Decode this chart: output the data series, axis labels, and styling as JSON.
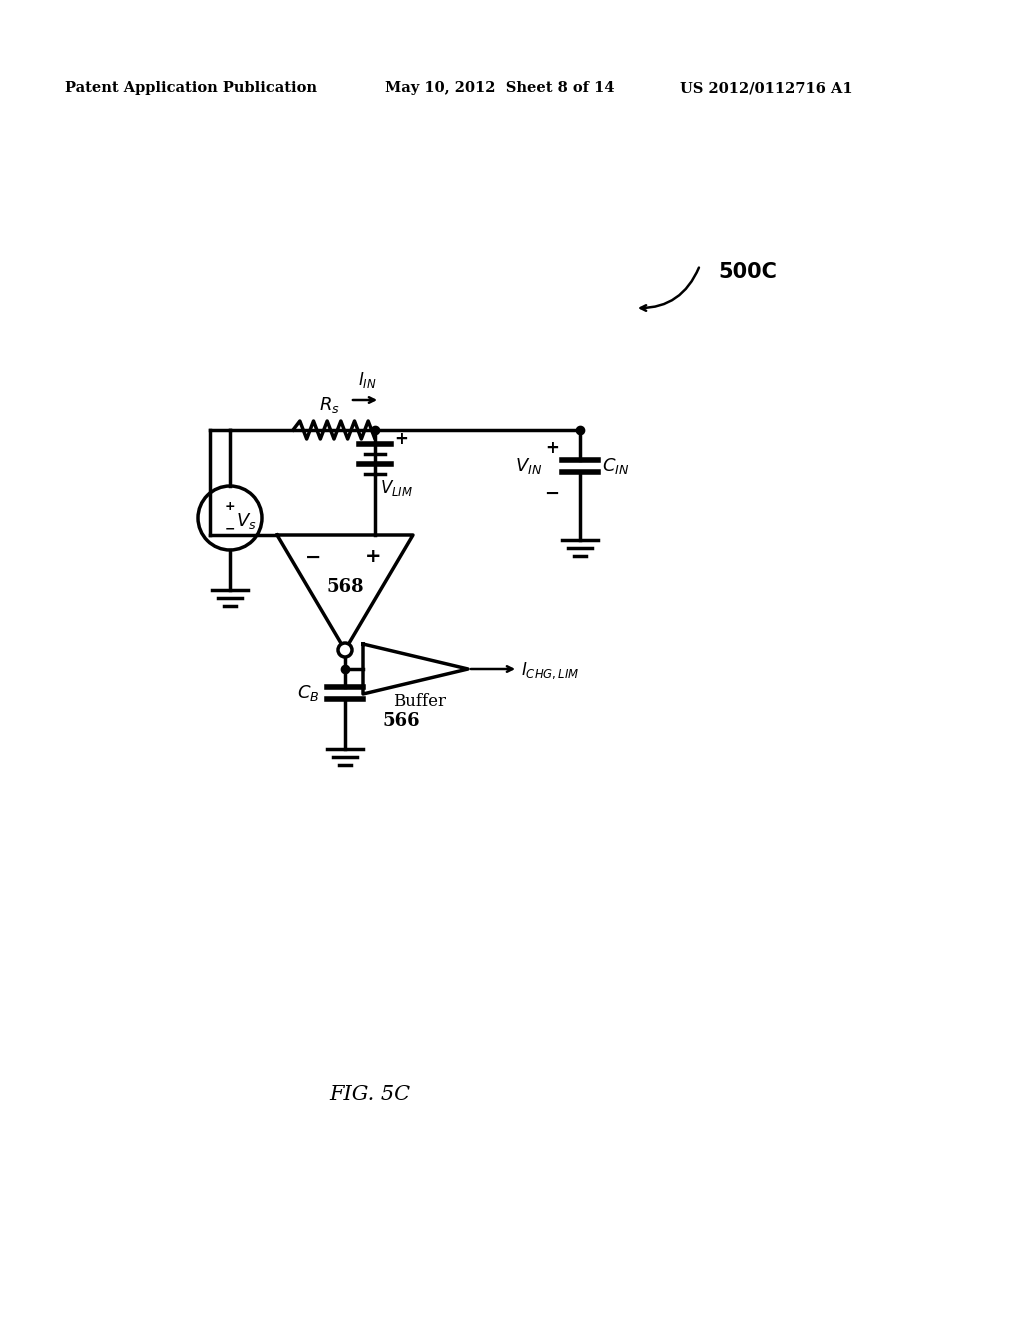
{
  "bg_color": "#ffffff",
  "header_left": "Patent Application Publication",
  "header_mid": "May 10, 2012  Sheet 8 of 14",
  "header_right": "US 2012/0112716 A1",
  "fig_label": "FIG. 5C",
  "label_500C": "500C",
  "label_568": "568",
  "label_566": "566",
  "label_buffer": "Buffer"
}
